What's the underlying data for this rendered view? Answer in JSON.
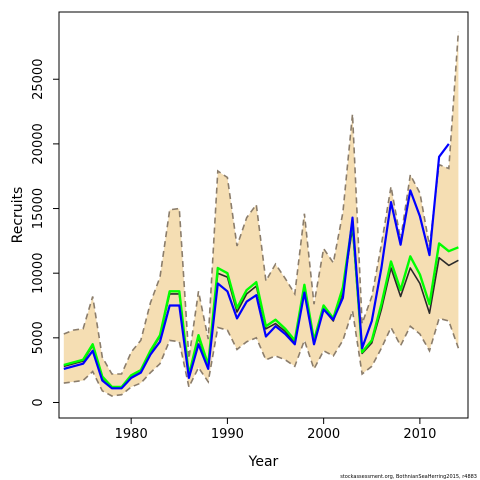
{
  "chart_data": {
    "type": "line",
    "xlabel": "Year",
    "ylabel": "Recruits",
    "footnote": "stockassessment.org, BothnianSeaHerring2015, r4883",
    "xlim": [
      1972.5,
      2015
    ],
    "ylim": [
      -1200,
      30200
    ],
    "x_ticks": [
      1980,
      1990,
      2000,
      2010
    ],
    "y_ticks": [
      0,
      5000,
      10000,
      15000,
      20000,
      25000
    ],
    "grid": false,
    "colors": {
      "band_fill": "#f5deb3",
      "band_border": "#8b7d6b",
      "estimate_line": "#2a2a2a",
      "alt_estimate_line": "#00ff00",
      "retro_line": "#0000ff"
    },
    "x": [
      1973,
      1974,
      1975,
      1976,
      1977,
      1978,
      1979,
      1980,
      1981,
      1982,
      1983,
      1984,
      1985,
      1986,
      1987,
      1988,
      1989,
      1990,
      1991,
      1992,
      1993,
      1994,
      1995,
      1996,
      1997,
      1998,
      1999,
      2000,
      2001,
      2002,
      2003,
      2004,
      2005,
      2006,
      2007,
      2008,
      2009,
      2010,
      2011,
      2012,
      2013,
      2014
    ],
    "band_upper": [
      5300,
      5600,
      5700,
      8200,
      3500,
      2200,
      2200,
      3900,
      4800,
      7700,
      9700,
      14900,
      15000,
      3400,
      8600,
      4900,
      17900,
      17400,
      12100,
      14300,
      15300,
      9400,
      10700,
      9600,
      8400,
      14600,
      7600,
      11900,
      10800,
      14700,
      22300,
      6100,
      8200,
      12200,
      16700,
      12600,
      17600,
      16200,
      12100,
      18400,
      18100,
      28700
    ],
    "band_lower": [
      1500,
      1600,
      1700,
      2400,
      900,
      500,
      600,
      1200,
      1500,
      2300,
      3000,
      4800,
      4700,
      1200,
      2700,
      1600,
      5800,
      5600,
      4100,
      4700,
      5000,
      3300,
      3600,
      3300,
      2800,
      4800,
      2600,
      4000,
      3600,
      4800,
      7100,
      2200,
      2800,
      4200,
      5800,
      4400,
      5900,
      5300,
      4000,
      6500,
      6300,
      4200
    ],
    "series": [
      {
        "values": [
          2800,
          3000,
          3200,
          4400,
          1900,
          1200,
          1100,
          2000,
          2400,
          3900,
          5100,
          8400,
          8400,
          2000,
          5000,
          2800,
          10000,
          9700,
          7000,
          8400,
          9000,
          5700,
          6100,
          5500,
          4600,
          8800,
          4600,
          7200,
          6300,
          8600,
          13500,
          3800,
          4600,
          7200,
          10400,
          8200,
          10400,
          9200,
          6900,
          11200,
          10600,
          11000
        ]
      },
      {
        "values": [
          2900,
          3100,
          3300,
          4500,
          2000,
          1200,
          1200,
          2100,
          2500,
          4000,
          5200,
          8600,
          8600,
          2100,
          5200,
          2900,
          10400,
          10000,
          7300,
          8700,
          9300,
          5900,
          6400,
          5700,
          4800,
          9100,
          4800,
          7500,
          6500,
          8900,
          14000,
          3900,
          4800,
          7600,
          10900,
          8700,
          11300,
          9900,
          7600,
          12300,
          11700,
          12000
        ]
      },
      {
        "values": [
          2600,
          2800,
          3000,
          4000,
          1700,
          1100,
          1100,
          1900,
          2300,
          3700,
          4700,
          7500,
          7500,
          1900,
          4500,
          2600,
          9200,
          8600,
          6500,
          7800,
          8300,
          5100,
          5900,
          5300,
          4500,
          8500,
          4500,
          7200,
          6400,
          8100,
          14300,
          4200,
          6300,
          10400,
          15500,
          12200,
          16400,
          14400,
          11400,
          19000,
          20000,
          null
        ]
      }
    ]
  }
}
